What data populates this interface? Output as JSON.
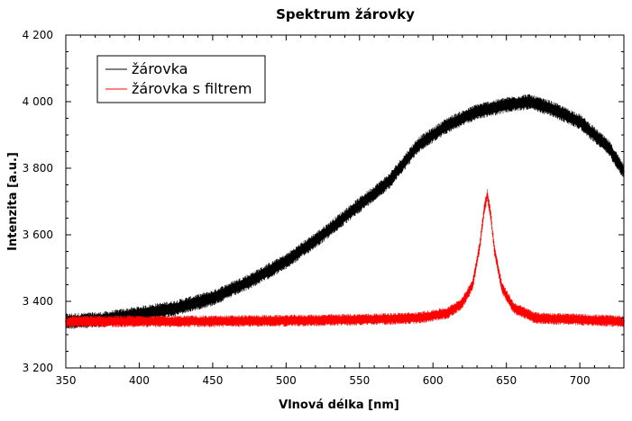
{
  "chart_data": {
    "type": "line",
    "title": "Spektrum žárovky",
    "xlabel": "Vlnová délka [nm]",
    "ylabel": "Intenzita [a.u.]",
    "xlim": [
      350,
      730
    ],
    "ylim": [
      3200,
      4200
    ],
    "xticks": [
      350,
      400,
      450,
      500,
      550,
      600,
      650,
      700
    ],
    "xtick_labels": [
      "350",
      "400",
      "450",
      "500",
      "550",
      "600",
      "650",
      "700"
    ],
    "yticks": [
      3200,
      3400,
      3600,
      3800,
      4000,
      4200
    ],
    "ytick_labels": [
      "3 200",
      "3 400",
      "3 600",
      "3 800",
      "4 000",
      "4 200"
    ],
    "grid": false,
    "legend_position": "top-left",
    "series": [
      {
        "name": "žárovka",
        "color": "#000000",
        "noise_band": 48,
        "x": [
          350,
          375,
          400,
          425,
          450,
          475,
          500,
          525,
          550,
          570,
          590,
          610,
          630,
          650,
          665,
          680,
          700,
          720,
          730
        ],
        "y": [
          3340,
          3345,
          3362,
          3380,
          3410,
          3460,
          3520,
          3600,
          3690,
          3760,
          3870,
          3930,
          3970,
          3990,
          4000,
          3980,
          3940,
          3860,
          3790
        ]
      },
      {
        "name": "žárovka s filtrem",
        "color": "#ff0000",
        "noise_band": 36,
        "x": [
          350,
          400,
          450,
          500,
          550,
          590,
          610,
          620,
          627,
          632,
          635,
          637,
          639,
          642,
          647,
          655,
          670,
          700,
          730
        ],
        "y": [
          3340,
          3340,
          3340,
          3342,
          3345,
          3350,
          3365,
          3395,
          3450,
          3570,
          3680,
          3720,
          3670,
          3550,
          3440,
          3380,
          3350,
          3345,
          3340
        ]
      }
    ]
  }
}
